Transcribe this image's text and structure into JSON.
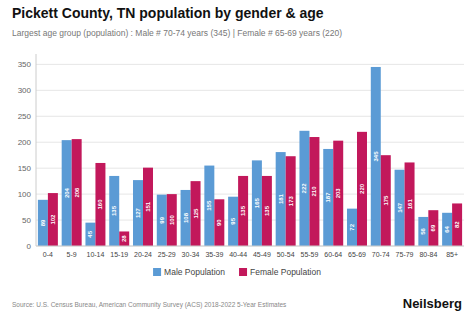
{
  "chart_data": {
    "type": "bar",
    "title": "Pickett County, TN population by gender & age",
    "subtitle": "Largest age group (population) : Male # 70-74 years (345) | Female # 65-69 years (220)",
    "source": "Source: U.S. Census Bureau, American Community Survey (ACS) 2018-2022 5-Year Estimates",
    "annotations": [
      "Neilsberg"
    ],
    "categories": [
      "0-4",
      "5-9",
      "10-14",
      "15-19",
      "20-24",
      "25-29",
      "30-34",
      "35-39",
      "40-44",
      "45-49",
      "50-54",
      "55-59",
      "60-64",
      "65-69",
      "70-74",
      "75-79",
      "80-84",
      "85+"
    ],
    "series": [
      {
        "name": "Male Population",
        "color": "#5B9BD5",
        "values": [
          89,
          204,
          45,
          135,
          127,
          99,
          108,
          155,
          95,
          165,
          181,
          222,
          187,
          72,
          345,
          147,
          56,
          64
        ]
      },
      {
        "name": "Female Population",
        "color": "#C2185B",
        "values": [
          102,
          206,
          160,
          28,
          151,
          100,
          125,
          90,
          135,
          135,
          173,
          210,
          203,
          220,
          175,
          161,
          69,
          82
        ]
      }
    ],
    "ylim": [
      0,
      370
    ],
    "yticks": [
      0,
      50,
      100,
      150,
      200,
      250,
      300,
      350
    ],
    "grid": true,
    "legend": "bottom",
    "data_labels": true
  }
}
